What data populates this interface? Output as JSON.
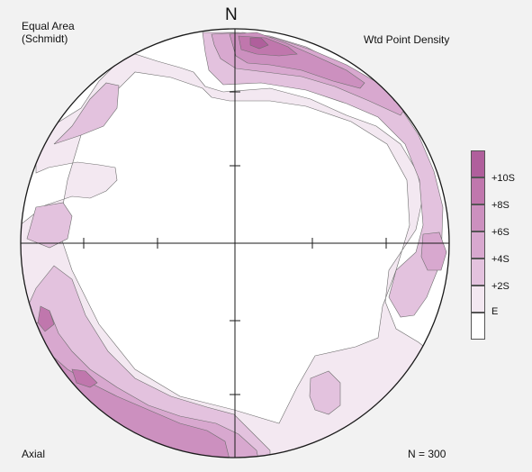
{
  "title_lines": [
    "Equal Area",
    "(Schmidt)"
  ],
  "north_label": "N",
  "density_title": "Wtd Point Density",
  "bottom_left_label": "Axial",
  "sample_count": "N = 300",
  "legend": {
    "items": [
      {
        "label": "",
        "color": "#b05f9c"
      },
      {
        "label": "+10S",
        "color": "#c077ad"
      },
      {
        "label": "+8S",
        "color": "#cc90bf"
      },
      {
        "label": "+6S",
        "color": "#d8a8cf"
      },
      {
        "label": "+4S",
        "color": "#e3c2de"
      },
      {
        "label": "+2S",
        "color": "#f3e8f1"
      },
      {
        "label": "E",
        "color": "#ffffff"
      }
    ]
  },
  "colors": {
    "background": "#f2f2f2",
    "net_fill": "#ffffff",
    "outline": "#1a1a1a"
  }
}
